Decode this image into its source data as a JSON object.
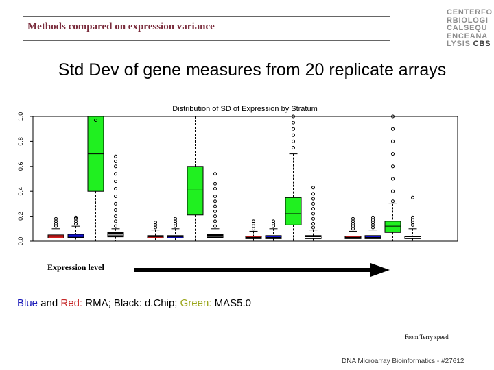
{
  "slide": {
    "title": "Methods compared on expression variance",
    "logo_lines": [
      "CENTERFO",
      "RBIOLOGI",
      "CALSEQU",
      "ENCEANA",
      "LYSIS"
    ],
    "logo_accent": "CBS",
    "subtitle": "Std Dev of gene measures from 20 replicate arrays",
    "level_label": "Expression level",
    "legend": {
      "blue": "Blue",
      "and": " and ",
      "red": "Red:",
      "rma": " RMA; Black: d.Chip; ",
      "green": "Green:",
      "mas": " MAS5.0"
    },
    "source": "From Terry speed",
    "footer": "DNA Microarray Bioinformatics - #27612"
  },
  "colors": {
    "title": "#7a2c3c",
    "rma_red": "#e02020",
    "rma_blue": "#1010d0",
    "mas_green": "#20f020",
    "dchip_black": "#000000",
    "legend_green_text": "#9aa51a"
  },
  "chart_data": {
    "type": "box",
    "title": "Distribution of SD of Expression by Stratum",
    "xlabel": "",
    "ylabel": "",
    "ylim": [
      0,
      1.0
    ],
    "yticks": [
      "0.0",
      "0.2",
      "0.4",
      "0.6",
      "0.8",
      "1.0"
    ],
    "ytick_values": [
      0,
      0.2,
      0.4,
      0.6,
      0.8,
      1.0
    ],
    "series": [
      {
        "name": "RMA (red)",
        "color": "#e02020"
      },
      {
        "name": "RMA (blue)",
        "color": "#1010d0"
      },
      {
        "name": "MAS5.0",
        "color": "#20f020"
      },
      {
        "name": "d.Chip",
        "color": "#000000"
      }
    ],
    "strata": [
      {
        "boxes": [
          {
            "series": 0,
            "whisker_low": 0.0,
            "q1": 0.025,
            "median": 0.04,
            "q3": 0.05,
            "whisker_high": 0.1,
            "outliers": [
              0.12,
              0.14,
              0.16,
              0.18
            ]
          },
          {
            "series": 1,
            "whisker_low": 0.0,
            "q1": 0.03,
            "median": 0.04,
            "q3": 0.055,
            "whisker_high": 0.12,
            "outliers": [
              0.14,
              0.16,
              0.18,
              0.19
            ]
          },
          {
            "series": 2,
            "whisker_low": 0.0,
            "q1": 0.4,
            "median": 0.7,
            "q3": 1.0,
            "whisker_high": 1.0,
            "outliers": [
              0.97
            ]
          },
          {
            "series": 3,
            "whisker_low": 0.0,
            "q1": 0.035,
            "median": 0.05,
            "q3": 0.07,
            "whisker_high": 0.1,
            "outliers": [
              0.12,
              0.16,
              0.2,
              0.25,
              0.3,
              0.36,
              0.42,
              0.48,
              0.54,
              0.6,
              0.64,
              0.68
            ]
          }
        ]
      },
      {
        "boxes": [
          {
            "series": 0,
            "whisker_low": 0.0,
            "q1": 0.025,
            "median": 0.035,
            "q3": 0.045,
            "whisker_high": 0.09,
            "outliers": [
              0.11,
              0.13,
              0.15
            ]
          },
          {
            "series": 1,
            "whisker_low": 0.0,
            "q1": 0.025,
            "median": 0.035,
            "q3": 0.045,
            "whisker_high": 0.1,
            "outliers": [
              0.12,
              0.14,
              0.16,
              0.18
            ]
          },
          {
            "series": 2,
            "whisker_low": 0.0,
            "q1": 0.21,
            "median": 0.41,
            "q3": 0.6,
            "whisker_high": 1.0,
            "outliers": []
          },
          {
            "series": 3,
            "whisker_low": 0.0,
            "q1": 0.025,
            "median": 0.04,
            "q3": 0.055,
            "whisker_high": 0.1,
            "outliers": [
              0.12,
              0.16,
              0.2,
              0.24,
              0.28,
              0.32,
              0.36,
              0.42,
              0.46,
              0.54
            ]
          }
        ]
      },
      {
        "boxes": [
          {
            "series": 0,
            "whisker_low": 0.0,
            "q1": 0.02,
            "median": 0.03,
            "q3": 0.04,
            "whisker_high": 0.08,
            "outliers": [
              0.1,
              0.12,
              0.14,
              0.16
            ]
          },
          {
            "series": 1,
            "whisker_low": 0.0,
            "q1": 0.02,
            "median": 0.03,
            "q3": 0.045,
            "whisker_high": 0.1,
            "outliers": [
              0.12,
              0.14,
              0.16
            ]
          },
          {
            "series": 2,
            "whisker_low": 0.0,
            "q1": 0.13,
            "median": 0.22,
            "q3": 0.35,
            "whisker_high": 0.7,
            "outliers": [
              0.75,
              0.8,
              0.85,
              0.9,
              0.95,
              1.0
            ]
          },
          {
            "series": 3,
            "whisker_low": 0.0,
            "q1": 0.02,
            "median": 0.03,
            "q3": 0.045,
            "whisker_high": 0.09,
            "outliers": [
              0.11,
              0.14,
              0.18,
              0.22,
              0.26,
              0.3,
              0.34,
              0.38,
              0.43
            ]
          }
        ]
      },
      {
        "boxes": [
          {
            "series": 0,
            "whisker_low": 0.0,
            "q1": 0.02,
            "median": 0.03,
            "q3": 0.04,
            "whisker_high": 0.08,
            "outliers": [
              0.1,
              0.12,
              0.14,
              0.16,
              0.18
            ]
          },
          {
            "series": 1,
            "whisker_low": 0.0,
            "q1": 0.02,
            "median": 0.03,
            "q3": 0.045,
            "whisker_high": 0.09,
            "outliers": [
              0.11,
              0.13,
              0.15,
              0.17,
              0.19
            ]
          },
          {
            "series": 2,
            "whisker_low": 0.0,
            "q1": 0.07,
            "median": 0.12,
            "q3": 0.16,
            "whisker_high": 0.3,
            "outliers": [
              0.32,
              0.4,
              0.5,
              0.6,
              0.7,
              0.8,
              0.9,
              1.0
            ]
          },
          {
            "series": 3,
            "whisker_low": 0.0,
            "q1": 0.02,
            "median": 0.03,
            "q3": 0.04,
            "whisker_high": 0.1,
            "outliers": [
              0.13,
              0.15,
              0.17,
              0.19,
              0.35
            ]
          }
        ]
      }
    ]
  }
}
